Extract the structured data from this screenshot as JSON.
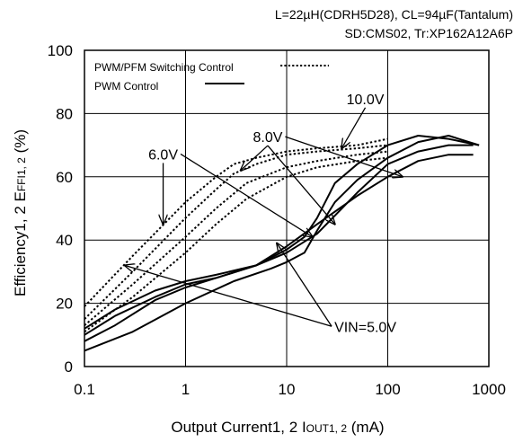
{
  "chart_data": {
    "type": "line",
    "conditions": [
      "L=22µH(CDRH5D28), CL=94µF(Tantalum)",
      "SD:CMS02, Tr:XP162A12A6P"
    ],
    "xlabel_main": "Output Current1, 2 ",
    "xlabel_sym": "I",
    "xlabel_sub": "OUT1, 2",
    "xlabel_unit": " (mA)",
    "ylabel_main": "Efficiency1, 2 E",
    "ylabel_sub": "FFI1, 2",
    "ylabel_unit": "  (%)",
    "xscale": "log",
    "xlim": [
      0.1,
      1000
    ],
    "ylim": [
      0,
      100
    ],
    "xticks": [
      0.1,
      1,
      10,
      100,
      1000
    ],
    "xtick_labels": [
      "0.1",
      "1",
      "10",
      "100",
      "1000"
    ],
    "yticks": [
      0,
      20,
      40,
      60,
      80,
      100
    ],
    "ytick_labels": [
      "0",
      "20",
      "40",
      "60",
      "80",
      "100"
    ],
    "grid": true,
    "legend": {
      "placement": "top-left",
      "entries": [
        {
          "label": "PWM/PFM Switching Control",
          "style": "dotted"
        },
        {
          "label": "PWM  Control",
          "style": "solid"
        }
      ]
    },
    "annotations": [
      {
        "text": "10.0V",
        "label_at": [
          60,
          83
        ],
        "arrow_to": [
          [
            35,
            69
          ]
        ]
      },
      {
        "text": "8.0V",
        "label_at": [
          6.5,
          71
        ],
        "arrow_to": [
          [
            3.5,
            62
          ],
          [
            140,
            60
          ],
          [
            30,
            45
          ]
        ]
      },
      {
        "text": "6.0V",
        "label_at": [
          0.6,
          65.5
        ],
        "arrow_to": [
          [
            0.6,
            45
          ],
          [
            18,
            41
          ]
        ]
      },
      {
        "text": "VIN=5.0V",
        "label_at": [
          60,
          11
        ],
        "arrow_to": [
          [
            0.25,
            32
          ],
          [
            8,
            39
          ]
        ]
      }
    ],
    "series": [
      {
        "style": "solid",
        "x": [
          0.1,
          0.2,
          0.5,
          1,
          2,
          5,
          10,
          20,
          50,
          100,
          200,
          400,
          700
        ],
        "y": [
          10,
          16,
          22,
          26,
          28,
          32,
          38,
          45,
          54,
          60,
          65,
          67,
          67
        ]
      },
      {
        "style": "solid",
        "x": [
          0.1,
          0.2,
          0.5,
          1,
          2,
          5,
          10,
          20,
          50,
          100,
          200,
          400,
          700
        ],
        "y": [
          12,
          18,
          24,
          27,
          29,
          32,
          36,
          42,
          55,
          64,
          68,
          70,
          70
        ]
      },
      {
        "style": "solid",
        "x": [
          0.1,
          0.2,
          0.5,
          1,
          2,
          5,
          10,
          15,
          20,
          30,
          50,
          100,
          200,
          400,
          800
        ],
        "y": [
          8,
          13,
          21,
          25,
          28,
          32,
          37,
          41,
          47,
          58,
          64,
          70,
          73,
          72,
          70
        ]
      },
      {
        "style": "solid",
        "x": [
          0.1,
          0.3,
          1,
          3,
          7,
          10,
          15,
          20,
          30,
          50,
          100,
          200,
          400,
          800
        ],
        "y": [
          5,
          11,
          20,
          27,
          31,
          33,
          36,
          43,
          52,
          59,
          66,
          71,
          73,
          70
        ]
      },
      {
        "style": "dotted",
        "x": [
          0.1,
          0.3,
          1,
          2,
          3,
          5,
          10,
          20,
          50,
          100
        ],
        "y": [
          19,
          35,
          52,
          60,
          64,
          66,
          68,
          69,
          70,
          72
        ]
      },
      {
        "style": "dotted",
        "x": [
          0.1,
          0.3,
          1,
          2,
          3,
          5,
          10,
          20,
          50,
          100
        ],
        "y": [
          15,
          30,
          47,
          56,
          61,
          64,
          67,
          68,
          69,
          70
        ]
      },
      {
        "style": "dotted",
        "x": [
          0.1,
          0.3,
          1,
          2,
          4,
          10,
          20,
          50,
          100
        ],
        "y": [
          13,
          26,
          41,
          50,
          58,
          63,
          65,
          67,
          68
        ]
      },
      {
        "style": "dotted",
        "x": [
          0.1,
          0.3,
          1,
          2,
          4,
          10,
          20,
          50,
          100
        ],
        "y": [
          11,
          22,
          36,
          45,
          53,
          60,
          63,
          65,
          66
        ]
      }
    ]
  }
}
